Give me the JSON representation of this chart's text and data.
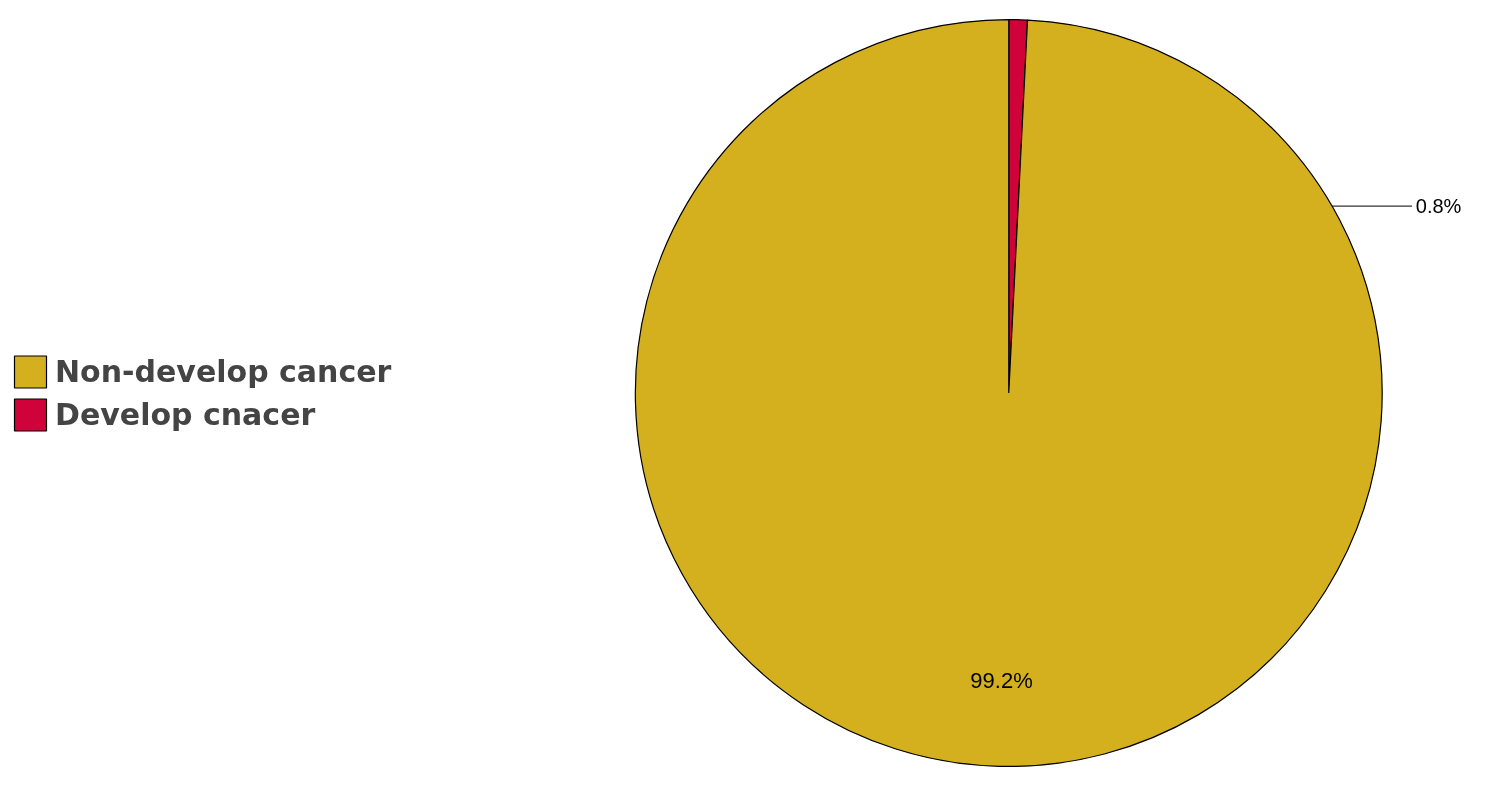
{
  "chart_data": {
    "type": "pie",
    "categories": [
      "Non-develop cancer",
      "Develop cnacer"
    ],
    "values": [
      99.2,
      0.8
    ],
    "colors": [
      "#d4b01e",
      "#d0023a"
    ],
    "value_labels": [
      "99.2%",
      "0.8%"
    ],
    "legend": "left"
  }
}
